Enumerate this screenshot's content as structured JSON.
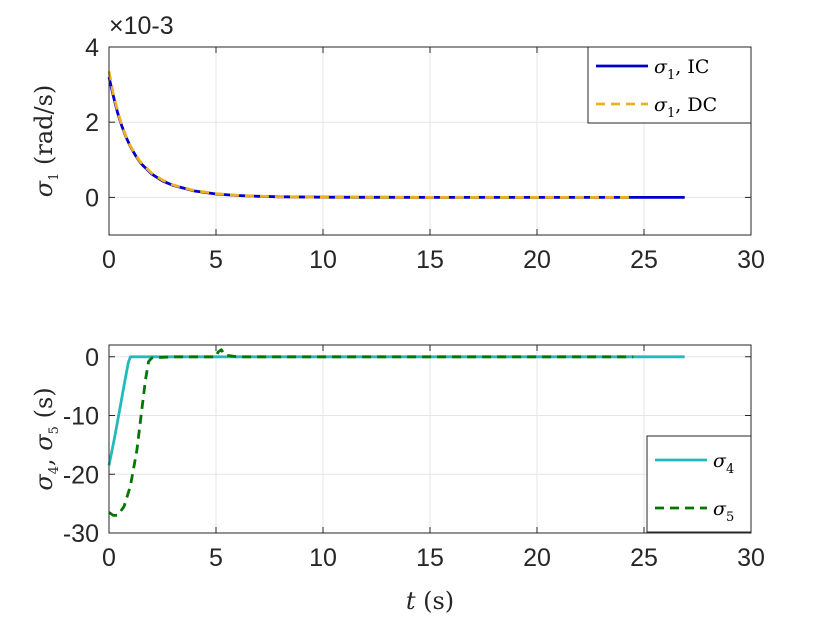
{
  "chart_data": [
    {
      "type": "line",
      "title": "",
      "xlabel": "",
      "ylabel": {
        "symbol": "σ",
        "sub": "1",
        "unit": " (rad/s)"
      },
      "xlim": [
        0,
        30
      ],
      "ylim": [
        -1,
        4
      ],
      "y_scale_exponent": "×10-3",
      "xticks": [
        "0",
        "5",
        "10",
        "15",
        "20",
        "25",
        "30"
      ],
      "yticks": [
        "0",
        "2",
        "4"
      ],
      "ytick_values": [
        0,
        2,
        4
      ],
      "grid": true,
      "legend_position": "top-right",
      "series": [
        {
          "name": {
            "symbol": "σ",
            "sub": "1",
            "suffix": ", IC"
          },
          "color": "#0000cc",
          "style": "solid",
          "x": [
            0,
            0.2,
            0.4,
            0.6,
            0.8,
            1,
            1.25,
            1.5,
            2,
            2.5,
            3,
            4,
            5,
            6,
            7,
            8,
            10,
            12,
            15,
            20,
            25,
            26.9
          ],
          "y": [
            3.2,
            2.7,
            2.25,
            1.9,
            1.6,
            1.35,
            1.1,
            0.9,
            0.62,
            0.44,
            0.32,
            0.17,
            0.09,
            0.05,
            0.03,
            0.015,
            0.005,
            0.002,
            0,
            0,
            0,
            0
          ]
        },
        {
          "name": {
            "symbol": "σ",
            "sub": "1",
            "suffix": ", DC"
          },
          "color": "#edb120",
          "style": "dashed",
          "x": [
            0,
            0.2,
            0.4,
            0.6,
            0.8,
            1,
            1.25,
            1.5,
            2,
            2.5,
            3,
            4,
            5,
            6,
            7,
            8,
            10,
            12,
            15,
            20,
            24.5
          ],
          "y": [
            3.35,
            2.75,
            2.3,
            1.92,
            1.62,
            1.37,
            1.12,
            0.92,
            0.64,
            0.46,
            0.33,
            0.18,
            0.1,
            0.055,
            0.03,
            0.016,
            0.005,
            0.002,
            0,
            0,
            0
          ]
        }
      ]
    },
    {
      "type": "line",
      "title": "",
      "xlabel": {
        "symbol": "t",
        "unit": " (s)"
      },
      "ylabel": {
        "symbol": "σ",
        "sub": "4",
        "mid": ", ",
        "symbol2": "σ",
        "sub2": "5",
        "unit": " (s)"
      },
      "xlim": [
        0,
        30
      ],
      "ylim": [
        -30,
        2
      ],
      "xticks": [
        "0",
        "5",
        "10",
        "15",
        "20",
        "25",
        "30"
      ],
      "yticks": [
        "-30",
        "-20",
        "-10",
        "0"
      ],
      "ytick_values": [
        -30,
        -20,
        -10,
        0
      ],
      "grid": true,
      "legend_position": "bottom-right",
      "series": [
        {
          "name": {
            "symbol": "σ",
            "sub": "4",
            "suffix": ""
          },
          "color": "#22bbbb",
          "style": "solid",
          "x": [
            0,
            0.25,
            0.5,
            0.75,
            0.9,
            1.0,
            1.5,
            2,
            5,
            10,
            15,
            20,
            25,
            26.9
          ],
          "y": [
            -18.5,
            -14,
            -9,
            -4,
            -1,
            0,
            0,
            0,
            0,
            0,
            0,
            0,
            0,
            0
          ]
        },
        {
          "name": {
            "symbol": "σ",
            "sub": "5",
            "suffix": ""
          },
          "color": "#007700",
          "style": "dashed",
          "x": [
            0,
            0.2,
            0.4,
            0.7,
            1.0,
            1.3,
            1.5,
            1.7,
            1.85,
            2.0,
            3,
            4,
            5,
            5.1,
            5.25,
            5.4,
            6,
            10,
            15,
            20,
            24.5
          ],
          "y": [
            -26.5,
            -27,
            -27,
            -25.5,
            -22,
            -16,
            -10,
            -4,
            -0.8,
            -0.2,
            0,
            0,
            0,
            0.8,
            1.2,
            0.3,
            0,
            0,
            0,
            0,
            0
          ]
        }
      ]
    }
  ]
}
